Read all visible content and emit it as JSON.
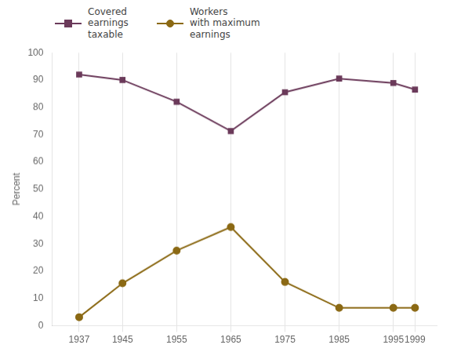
{
  "chart_data": {
    "type": "line",
    "ylabel": "Percent",
    "x": [
      1937,
      1945,
      1955,
      1965,
      1975,
      1985,
      1995,
      1999
    ],
    "series": [
      {
        "name": "Covered\nearnings\ntaxable",
        "color": "#6b3a5a",
        "marker": "square",
        "values": [
          92.0,
          90.0,
          82.0,
          71.3,
          85.5,
          90.5,
          88.9,
          86.5
        ]
      },
      {
        "name": "Workers\nwith maximum\nearnings",
        "color": "#8b6914",
        "marker": "circle",
        "values": [
          3.1,
          15.5,
          27.5,
          36.1,
          16.0,
          6.5,
          6.5,
          6.5
        ]
      }
    ],
    "xlim": [
      1932,
      2003
    ],
    "xticks": [
      1937,
      1945,
      1955,
      1965,
      1975,
      1985,
      1995,
      1999
    ],
    "ylim": [
      0,
      100
    ],
    "yticks": [
      0,
      10,
      20,
      30,
      40,
      50,
      60,
      70,
      80,
      90,
      100
    ],
    "grid": "x",
    "legend": "top"
  }
}
